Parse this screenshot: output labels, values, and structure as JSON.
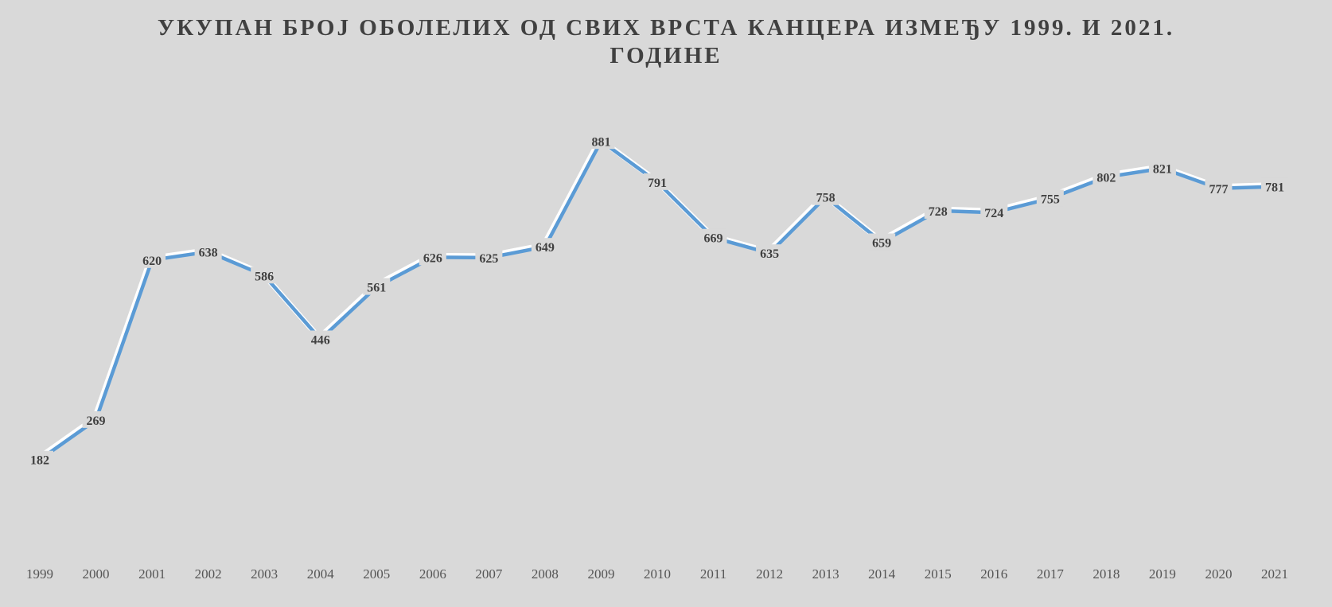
{
  "chart_data": {
    "type": "line",
    "title_line1": "УКУПАН БРОЈ ОБОЛЕЛИХ ОД СВИХ ВРСТА КАНЦЕРА ИЗМЕЂУ 1999. И 2021.",
    "title_line2": "ГОДИНЕ",
    "xlabel": "",
    "ylabel": "",
    "categories": [
      "1999",
      "2000",
      "2001",
      "2002",
      "2003",
      "2004",
      "2005",
      "2006",
      "2007",
      "2008",
      "2009",
      "2010",
      "2011",
      "2012",
      "2013",
      "2014",
      "2015",
      "2016",
      "2017",
      "2018",
      "2019",
      "2020",
      "2021"
    ],
    "series": [
      {
        "values": [
          182,
          269,
          620,
          638,
          586,
          446,
          561,
          626,
          625,
          649,
          881,
          791,
          669,
          635,
          758,
          659,
          728,
          724,
          755,
          802,
          821,
          777,
          781
        ]
      }
    ],
    "ylim": [
      0,
      960
    ],
    "grid": false,
    "drop_lines": true,
    "legend": "none",
    "line_color": "#5b9bd5"
  }
}
